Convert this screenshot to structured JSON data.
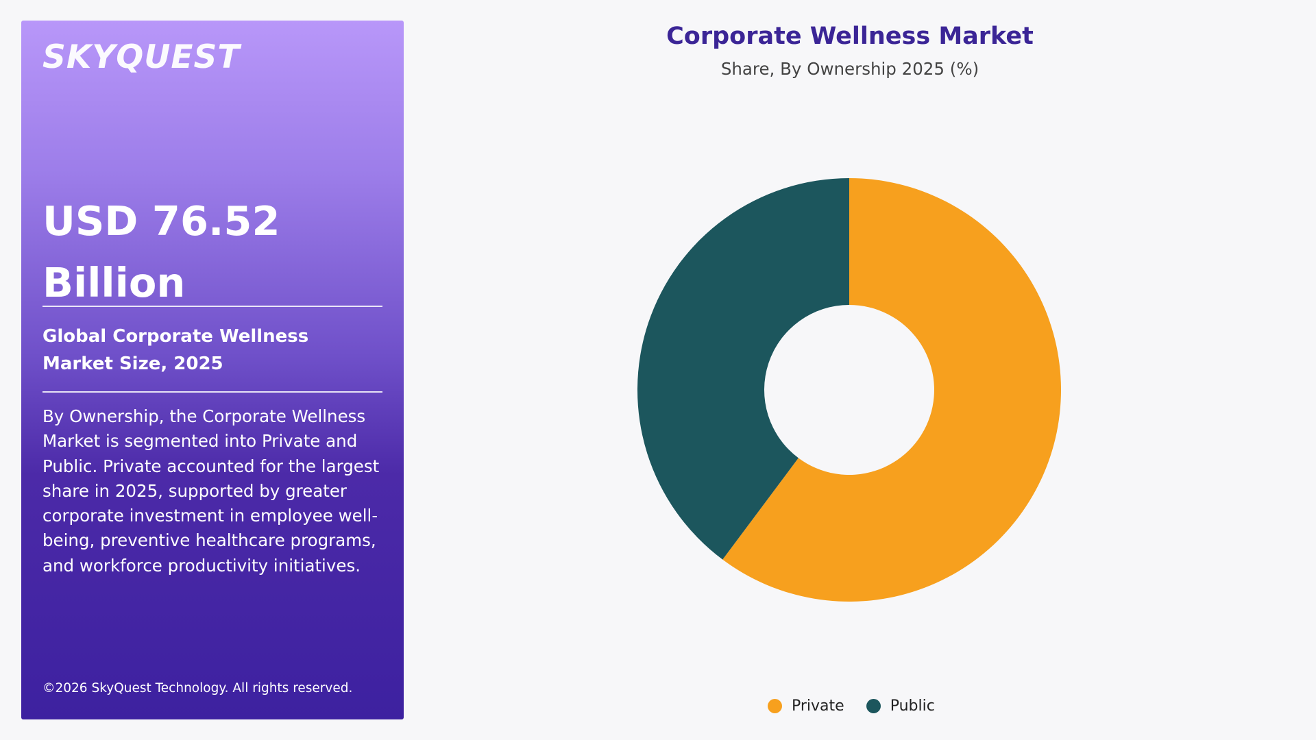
{
  "brand": {
    "logo_text": "SKYQUEST"
  },
  "panel": {
    "headline": "USD 76.52 Billion",
    "subhead": "Global Corporate Wellness Market Size, 2025",
    "description": "By Ownership, the Corporate Wellness Market is segmented into Private and Public. Private accounted for the largest share in 2025, supported by greater corporate investment in employee well-being, preventive healthcare programs, and workforce productivity initiatives.",
    "copyright": "©2026 SkyQuest Technology. All rights reserved."
  },
  "colors": {
    "private": "#f7a01e",
    "public": "#1c565d",
    "title": "#3b2596"
  },
  "chart_data": {
    "type": "pie",
    "title": "Corporate Wellness Market",
    "subtitle": "Share, By Ownership 2025 (%)",
    "categories": [
      "Private",
      "Public"
    ],
    "values": [
      60.2,
      39.8
    ],
    "donut": true,
    "legend_position": "bottom-center",
    "legend": [
      {
        "label": "Private",
        "color": "#f7a01e"
      },
      {
        "label": "Public",
        "color": "#1c565d"
      }
    ]
  }
}
